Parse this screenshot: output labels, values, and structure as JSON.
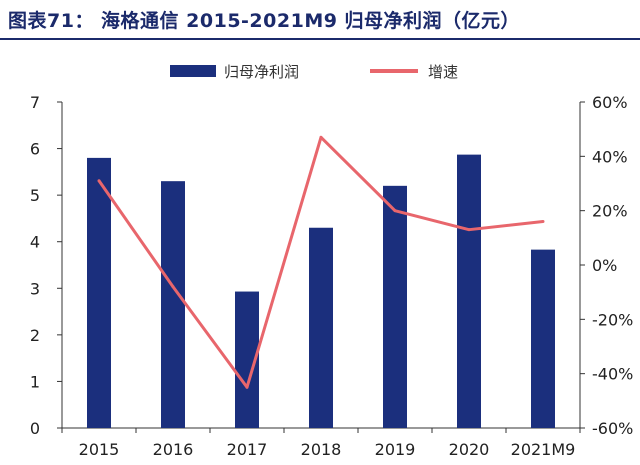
{
  "header": {
    "title": "图表71：   海格通信 2015-2021M9 归母净利润（亿元）"
  },
  "colors": {
    "bar": "#1b2f7d",
    "line": "#e8666c",
    "title": "#1b2a6b",
    "axis": "#333333"
  },
  "chart_data": {
    "type": "bar",
    "categories": [
      "2015",
      "2016",
      "2017",
      "2018",
      "2019",
      "2020",
      "2021M9"
    ],
    "series": [
      {
        "name": "归母净利润",
        "type": "bar",
        "axis": "left",
        "values": [
          5.8,
          5.3,
          2.93,
          4.3,
          5.2,
          5.87,
          3.83
        ]
      },
      {
        "name": "增速",
        "type": "line",
        "axis": "right",
        "values": [
          31,
          -8,
          -45,
          47,
          20,
          13,
          16
        ]
      }
    ],
    "left_axis": {
      "min": 0,
      "max": 7,
      "ticks": [
        "0",
        "1",
        "2",
        "3",
        "4",
        "5",
        "6",
        "7"
      ]
    },
    "right_axis": {
      "min": -60,
      "max": 60,
      "ticks": [
        "-60%",
        "-40%",
        "-20%",
        "0%",
        "20%",
        "40%",
        "60%"
      ]
    },
    "legend_position": "top",
    "grid": false
  }
}
